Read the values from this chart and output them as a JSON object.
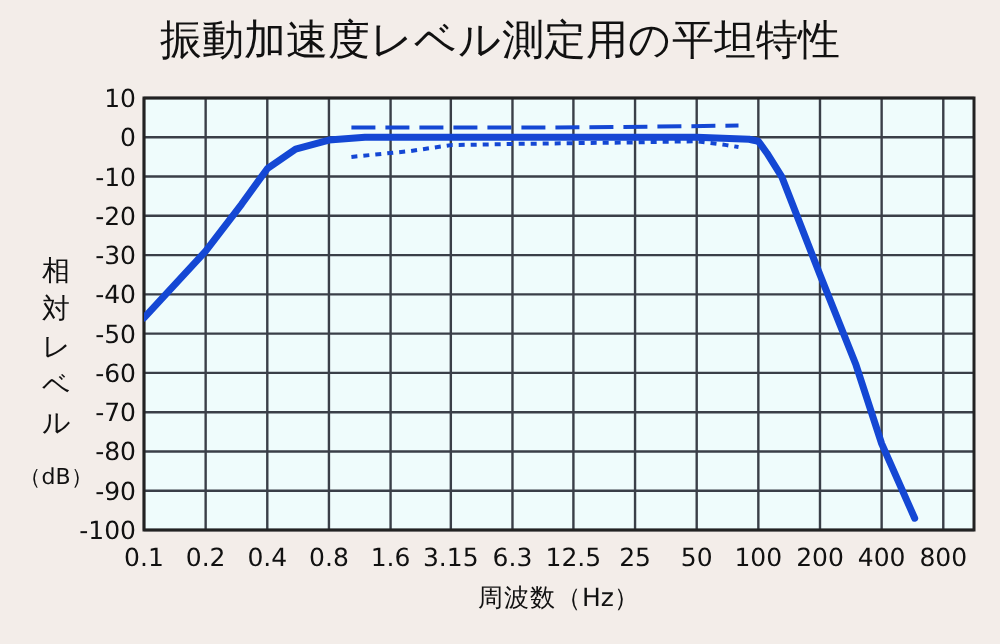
{
  "chart_data": {
    "type": "line",
    "title": "振動加速度レベル測定用の平坦特性",
    "xlabel": "周波数（Hz）",
    "ylabel": "相対レベル（dB）",
    "log": "x",
    "xlim": [
      0.1,
      1130
    ],
    "xticks": [
      0.1,
      0.2,
      0.4,
      0.8,
      1.6,
      3.15,
      6.3,
      12.5,
      25,
      50,
      100,
      200,
      400,
      800
    ],
    "ylim": [
      -100,
      10
    ],
    "yticks": [
      10,
      0,
      -10,
      -20,
      -30,
      -40,
      -50,
      -60,
      -70,
      -80,
      -90,
      -100
    ],
    "grid": true,
    "series": [
      {
        "color": "#1447d4",
        "line_style": "solid",
        "x": [
          0.1,
          0.2,
          0.3,
          0.4,
          0.55,
          0.8,
          1.2,
          2,
          5,
          20,
          50,
          90,
          100,
          110,
          130,
          200,
          300,
          400,
          580
        ],
        "values": [
          -46,
          -29,
          -17,
          -8,
          -3,
          -0.7,
          0,
          0,
          0,
          0,
          0,
          -0.5,
          -1,
          -4,
          -10,
          -35,
          -58,
          -78,
          -97
        ]
      },
      {
        "color": "#1447d4",
        "line_style": "dashed",
        "x": [
          1.03,
          3,
          10,
          30,
          80
        ],
        "values": [
          2.5,
          2.5,
          2.5,
          2.7,
          3
        ]
      },
      {
        "color": "#1447d4",
        "line_style": "dotted",
        "x": [
          1.03,
          2,
          3.15,
          6.3,
          12.5,
          25,
          50,
          70,
          80
        ],
        "values": [
          -5,
          -3.5,
          -2,
          -1.7,
          -1.5,
          -1.3,
          -1,
          -2,
          -2.5
        ]
      }
    ]
  }
}
